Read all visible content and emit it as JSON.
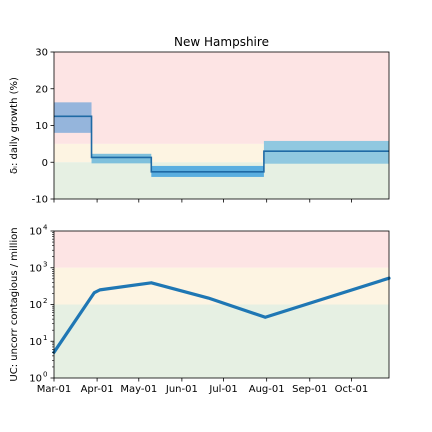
{
  "chart_data": [
    {
      "type": "step",
      "title": "New Hampshire",
      "xlabel": "",
      "ylabel": "δᵢ: daily growth (%)",
      "ylim": [
        -10,
        30
      ],
      "yticks": [
        -10,
        0,
        10,
        20,
        30
      ],
      "xlim": [
        "2020-03-01",
        "2020-10-28"
      ],
      "bands": [
        {
          "from": 5,
          "to": 30,
          "color": "#fde4e4"
        },
        {
          "from": 0,
          "to": 5,
          "color": "#fdf4e2"
        },
        {
          "from": -10,
          "to": 0,
          "color": "#e6f0e3"
        }
      ],
      "segments": [
        {
          "start": "2020-03-01",
          "end": "2020-03-28",
          "value": 12.5,
          "lower": 8.0,
          "upper": 16.3,
          "band_color": "#95b5dc"
        },
        {
          "start": "2020-03-28",
          "end": "2020-05-10",
          "value": 1.3,
          "lower": -0.3,
          "upper": 2.3,
          "band_color": "#7fc0dc"
        },
        {
          "start": "2020-05-10",
          "end": "2020-07-30",
          "value": -2.6,
          "lower": -4.0,
          "upper": -1.0,
          "band_color": "#5aaee0"
        },
        {
          "start": "2020-07-30",
          "end": "2020-10-28",
          "value": 3.0,
          "lower": -0.4,
          "upper": 5.8,
          "band_color": "#90c8e0"
        }
      ],
      "line_color": "#1f6aa5"
    },
    {
      "type": "line",
      "xlabel": "",
      "ylabel": "UC: uncorr contagious / million",
      "yscale": "log",
      "ylim": [
        1,
        10000
      ],
      "yticks": [
        1,
        10,
        100,
        1000,
        10000
      ],
      "ytick_labels": [
        {
          "base": "10",
          "exp": "0"
        },
        {
          "base": "10",
          "exp": "1"
        },
        {
          "base": "10",
          "exp": "2"
        },
        {
          "base": "10",
          "exp": "3"
        },
        {
          "base": "10",
          "exp": "4"
        }
      ],
      "xlim": [
        "2020-03-01",
        "2020-10-28"
      ],
      "xticks": [
        "2020-03-01",
        "2020-04-01",
        "2020-05-01",
        "2020-06-01",
        "2020-07-01",
        "2020-08-01",
        "2020-09-01",
        "2020-10-01"
      ],
      "xtick_labels": [
        "Mar-01",
        "Apr-01",
        "May-01",
        "Jun-01",
        "Jul-01",
        "Aug-01",
        "Sep-01",
        "Oct-01"
      ],
      "bands": [
        {
          "from": 1000,
          "to": 10000,
          "color": "#fde4e4"
        },
        {
          "from": 100,
          "to": 1000,
          "color": "#fdf4e2"
        },
        {
          "from": 1,
          "to": 100,
          "color": "#e6f0e3"
        }
      ],
      "series": [
        {
          "color": "#1f77b4",
          "points": [
            {
              "x": "2020-03-01",
              "y": 5
            },
            {
              "x": "2020-03-30",
              "y": 210
            },
            {
              "x": "2020-04-03",
              "y": 250
            },
            {
              "x": "2020-05-10",
              "y": 390
            },
            {
              "x": "2020-06-20",
              "y": 150
            },
            {
              "x": "2020-07-31",
              "y": 45
            },
            {
              "x": "2020-10-28",
              "y": 520
            }
          ]
        }
      ]
    }
  ]
}
